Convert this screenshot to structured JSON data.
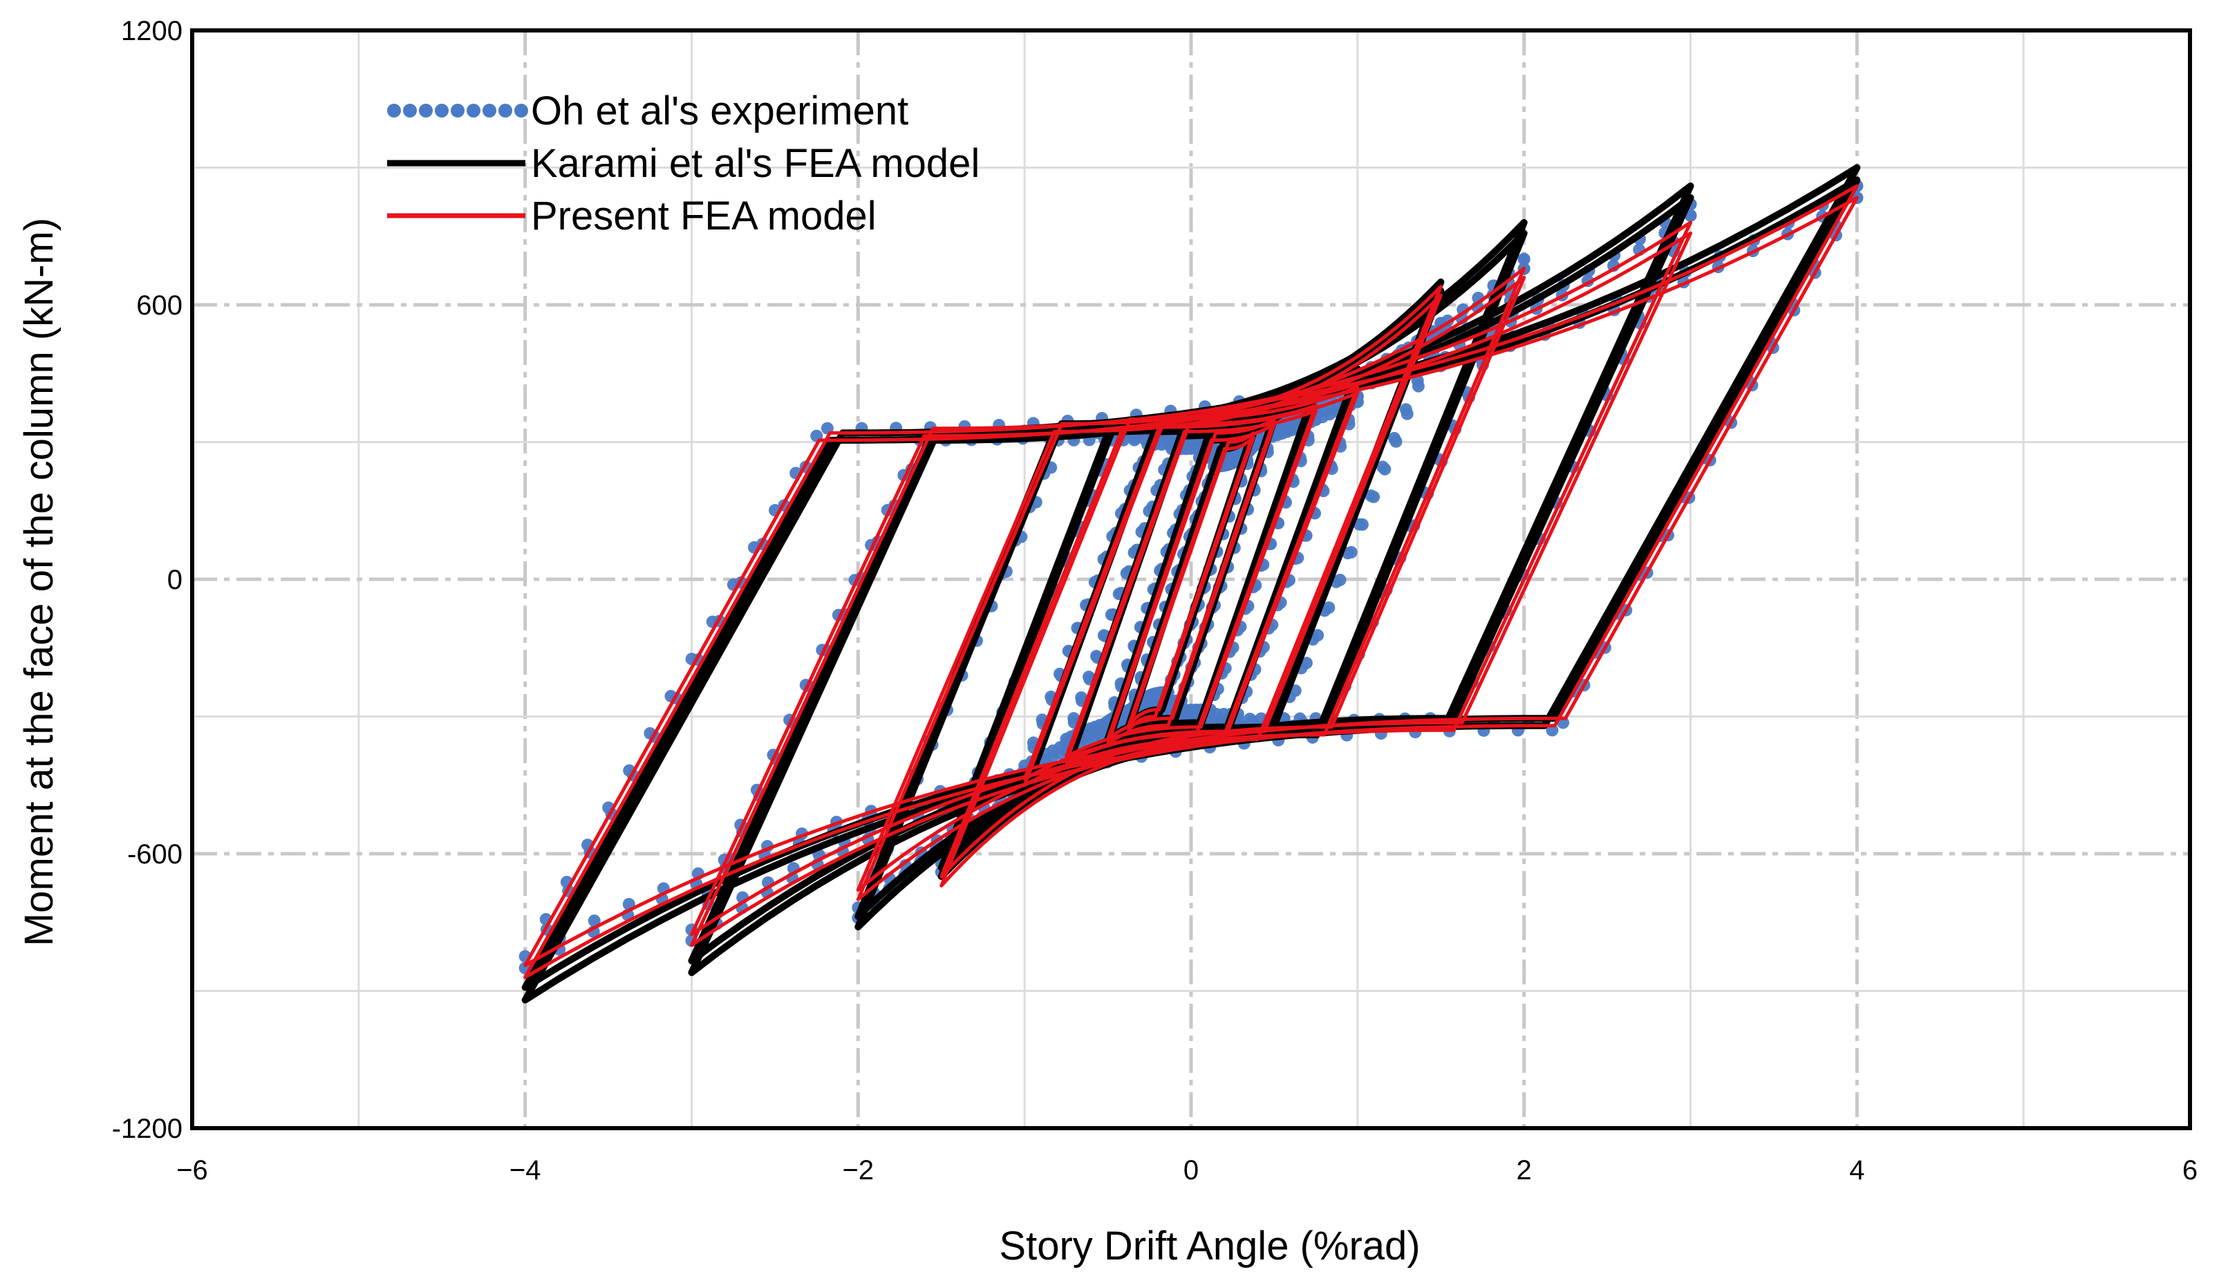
{
  "chart_data": {
    "type": "line",
    "xlabel": "Story Drift Angle (%rad)",
    "ylabel": "Moment at the face of the column (kN-m)",
    "xlim": [
      -6,
      6
    ],
    "ylim": [
      -1200,
      1200
    ],
    "xticks": [
      -6,
      -4,
      -2,
      0,
      2,
      4,
      6
    ],
    "yticks": [
      1200,
      600,
      0,
      -600,
      -1200
    ],
    "xtick_labels": [
      "−6",
      "−4",
      "−2",
      "0",
      "2",
      "4",
      "6"
    ],
    "ytick_labels": [
      "1200",
      "600",
      "0",
      "-600",
      "-1200"
    ],
    "grid": true,
    "legend_position": "top-left",
    "series": [
      {
        "name": "Oh et al's experiment",
        "style": "dotted-markers",
        "color": "#4a7ac5",
        "cycles": [
          {
            "amp": 0.375,
            "pos": 300,
            "neg": -300,
            "slope": 1050,
            "plateau": 260
          },
          {
            "amp": 0.5,
            "pos": 330,
            "neg": -320,
            "slope": 1050,
            "plateau": 280
          },
          {
            "amp": 0.75,
            "pos": 360,
            "neg": -360,
            "slope": 1000,
            "plateau": 300
          },
          {
            "amp": 1.0,
            "pos": 400,
            "neg": -420,
            "slope": 950,
            "plateau": 310
          },
          {
            "amp": 1.5,
            "pos": 560,
            "neg": -640,
            "slope": 900,
            "plateau": 320
          },
          {
            "amp": 2.0,
            "pos": 700,
            "neg": -740,
            "slope": 850,
            "plateau": 320
          },
          {
            "amp": 3.0,
            "pos": 820,
            "neg": -790,
            "slope": 780,
            "plateau": 320
          },
          {
            "amp": 4.0,
            "pos": 860,
            "neg": -850,
            "slope": 650,
            "plateau": 330
          }
        ]
      },
      {
        "name": "Karami et al's FEA model",
        "style": "solid",
        "color": "#000000",
        "cycles": [
          {
            "amp": 0.375,
            "pos": 330,
            "neg": -330,
            "slope": 1100,
            "plateau": 300
          },
          {
            "amp": 0.5,
            "pos": 360,
            "neg": -360,
            "slope": 1100,
            "plateau": 320
          },
          {
            "amp": 0.75,
            "pos": 420,
            "neg": -420,
            "slope": 1050,
            "plateau": 330
          },
          {
            "amp": 1.0,
            "pos": 460,
            "neg": -470,
            "slope": 1000,
            "plateau": 340
          },
          {
            "amp": 1.5,
            "pos": 650,
            "neg": -650,
            "slope": 950,
            "plateau": 340
          },
          {
            "amp": 2.0,
            "pos": 780,
            "neg": -760,
            "slope": 900,
            "plateau": 340
          },
          {
            "amp": 3.0,
            "pos": 860,
            "neg": -860,
            "slope": 800,
            "plateau": 320
          },
          {
            "amp": 4.0,
            "pos": 900,
            "neg": -920,
            "slope": 650,
            "plateau": 320
          }
        ]
      },
      {
        "name": "Present FEA model",
        "style": "solid",
        "color": "#e8121b",
        "cycles": [
          {
            "amp": 0.375,
            "pos": 320,
            "neg": -330,
            "slope": 1050,
            "plateau": 300
          },
          {
            "amp": 0.5,
            "pos": 350,
            "neg": -360,
            "slope": 1050,
            "plateau": 320
          },
          {
            "amp": 0.75,
            "pos": 380,
            "neg": -400,
            "slope": 1000,
            "plateau": 340
          },
          {
            "amp": 1.0,
            "pos": 420,
            "neg": -450,
            "slope": 950,
            "plateau": 350
          },
          {
            "amp": 1.5,
            "pos": 640,
            "neg": -670,
            "slope": 900,
            "plateau": 350
          },
          {
            "amp": 2.0,
            "pos": 680,
            "neg": -700,
            "slope": 850,
            "plateau": 340
          },
          {
            "amp": 3.0,
            "pos": 780,
            "neg": -800,
            "slope": 780,
            "plateau": 330
          },
          {
            "amp": 4.0,
            "pos": 860,
            "neg": -870,
            "slope": 650,
            "plateau": 320
          }
        ]
      }
    ]
  }
}
